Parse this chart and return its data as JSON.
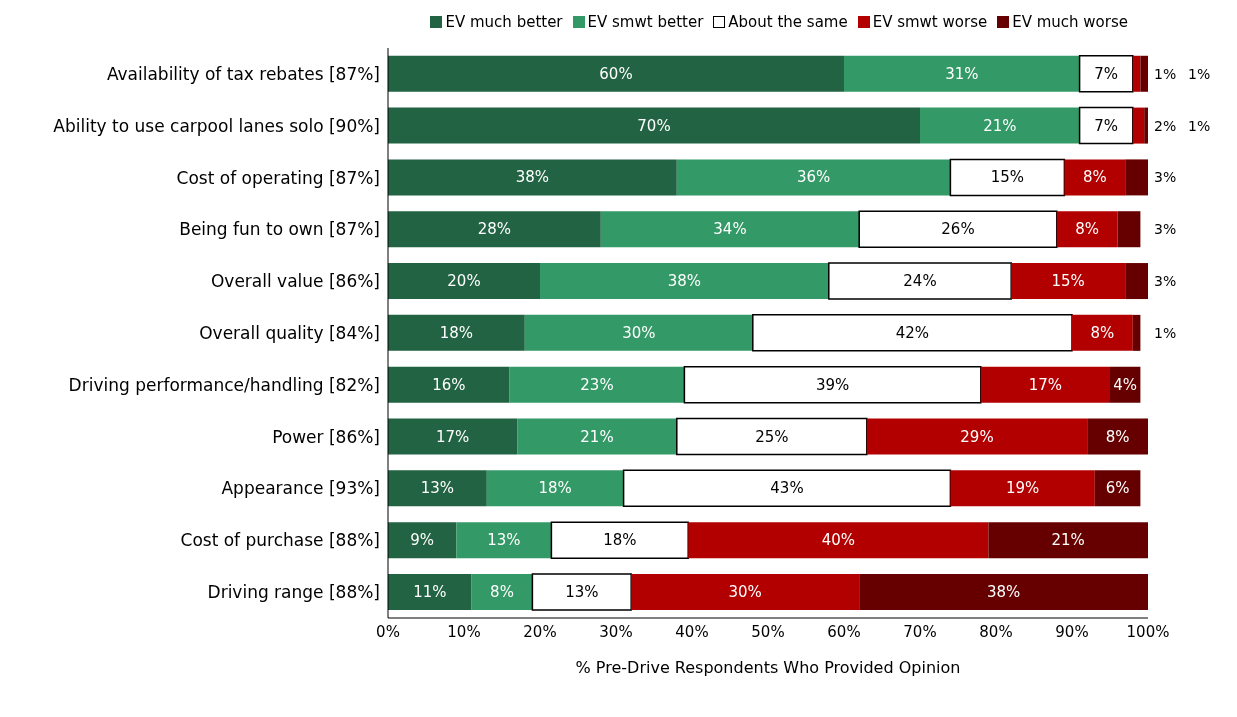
{
  "chart_data": {
    "type": "bar",
    "orientation": "horizontal",
    "stacked": true,
    "xlabel": "% Pre-Drive Respondents Who Provided Opinion",
    "categories": [
      "Availability of tax rebates [87%]",
      "Ability to use carpool lanes solo [90%]",
      "Cost of operating [87%]",
      "Being fun to own [87%]",
      "Overall value [86%]",
      "Overall quality [84%]",
      "Driving performance/handling [82%]",
      "Power [86%]",
      "Appearance [93%]",
      "Cost of purchase [88%]",
      "Driving range [88%]"
    ],
    "series": [
      {
        "name": "EV much better",
        "color": "#216342",
        "values": [
          60,
          70,
          38,
          28,
          20,
          18,
          16,
          17,
          13,
          9,
          11
        ],
        "value_labels": [
          "60%",
          "70%",
          "38%",
          "28%",
          "20%",
          "18%",
          "16%",
          "17%",
          "13%",
          "9%",
          "11%"
        ]
      },
      {
        "name": "EV smwt  better",
        "color": "#339966",
        "values": [
          31,
          21,
          36,
          34,
          38,
          30,
          23,
          21,
          18,
          12.5,
          8
        ],
        "value_labels": [
          "31%",
          "21%",
          "36%",
          "34%",
          "38%",
          "30%",
          "23%",
          "21%",
          "18%",
          "13%",
          "8%"
        ]
      },
      {
        "name": "About the same",
        "color": "#ffffff",
        "values": [
          7,
          7,
          15,
          26,
          24,
          42,
          39,
          25,
          43,
          18,
          13
        ],
        "value_labels": [
          "7%",
          "7%",
          "15%",
          "26%",
          "24%",
          "42%",
          "39%",
          "25%",
          "43%",
          "18%",
          "13%"
        ]
      },
      {
        "name": "EV smwt worse",
        "color": "#b20000",
        "values": [
          1,
          1.5,
          8,
          8,
          15,
          8,
          17,
          29,
          19,
          39.5,
          30
        ],
        "value_labels": [
          "1%",
          "2%",
          "8%",
          "8%",
          "15%",
          "8%",
          "17%",
          "29%",
          "19%",
          "40%",
          "30%"
        ]
      },
      {
        "name": "EV much worse",
        "color": "#660000",
        "values": [
          1,
          0.5,
          3,
          3,
          3,
          1,
          4,
          8,
          6,
          21,
          38
        ],
        "value_labels": [
          "1%",
          "1%",
          "3%",
          "3%",
          "3%",
          "1%",
          "4%",
          "8%",
          "6%",
          "21%",
          "38%"
        ]
      }
    ],
    "xlim": [
      0,
      100
    ],
    "xticks": [
      {
        "value": 0,
        "label": "0%"
      },
      {
        "value": 10,
        "label": "10%"
      },
      {
        "value": 20,
        "label": "20%"
      },
      {
        "value": 30,
        "label": "30%"
      },
      {
        "value": 40,
        "label": "40%"
      },
      {
        "value": 50,
        "label": "50%"
      },
      {
        "value": 60,
        "label": "60%"
      },
      {
        "value": 70,
        "label": "70%"
      },
      {
        "value": 80,
        "label": "80%"
      },
      {
        "value": 90,
        "label": "90%"
      },
      {
        "value": 100,
        "label": "100%"
      }
    ],
    "legend": "top"
  }
}
